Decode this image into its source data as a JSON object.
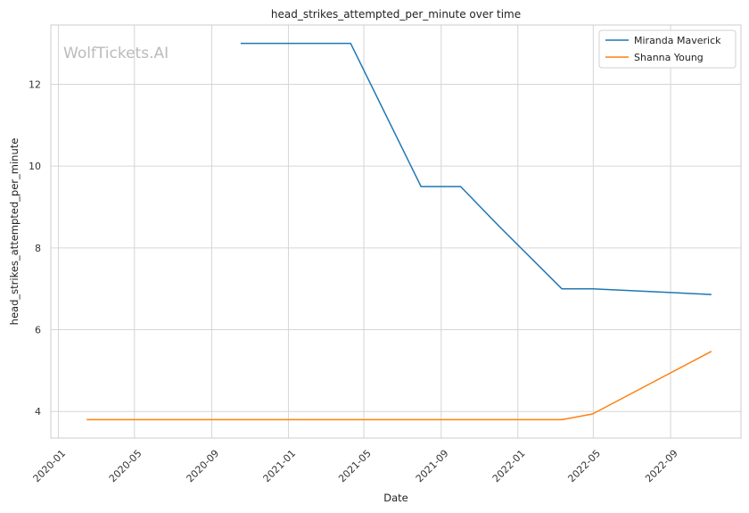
{
  "watermark": "WolfTickets.AI",
  "chart_data": {
    "type": "line",
    "title": "head_strikes_attempted_per_minute over time",
    "xlabel": "Date",
    "ylabel": "head_strikes_attempted_per_minute",
    "x_type": "date",
    "xlim": [
      "2019-12-20",
      "2022-12-22"
    ],
    "ylim": [
      3.35,
      13.45
    ],
    "x_ticks": [
      "2020-01",
      "2020-05",
      "2020-09",
      "2021-01",
      "2021-05",
      "2021-09",
      "2022-01",
      "2022-05",
      "2022-09"
    ],
    "y_ticks": [
      4,
      6,
      8,
      10,
      12
    ],
    "grid": true,
    "legend_position": "top-right",
    "series": [
      {
        "name": "Miranda Maverick",
        "color": "#1f77b4",
        "points": [
          {
            "x": "2020-10-17",
            "y": 13.0
          },
          {
            "x": "2021-04-10",
            "y": 13.0
          },
          {
            "x": "2021-07-31",
            "y": 9.5
          },
          {
            "x": "2021-10-02",
            "y": 9.5
          },
          {
            "x": "2021-12-04",
            "y": 8.5
          },
          {
            "x": "2022-03-12",
            "y": 7.0
          },
          {
            "x": "2022-04-30",
            "y": 7.0
          },
          {
            "x": "2022-11-05",
            "y": 6.86
          }
        ]
      },
      {
        "name": "Shanna Young",
        "color": "#ff7f0e",
        "points": [
          {
            "x": "2020-02-15",
            "y": 3.8
          },
          {
            "x": "2022-03-12",
            "y": 3.8
          },
          {
            "x": "2022-04-30",
            "y": 3.94
          },
          {
            "x": "2022-11-05",
            "y": 5.47
          }
        ]
      }
    ]
  }
}
